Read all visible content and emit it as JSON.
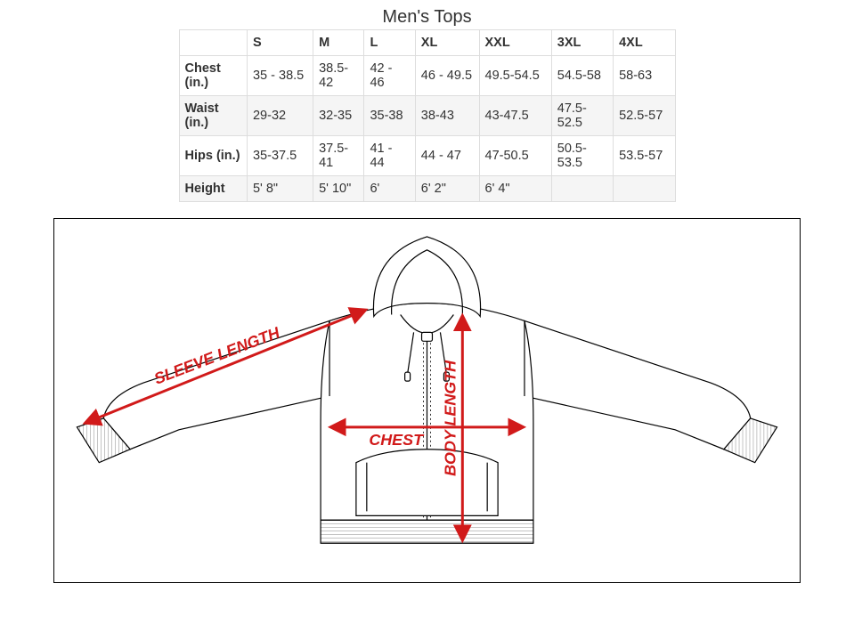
{
  "title": "Men's Tops",
  "table": {
    "columns": [
      "",
      "S",
      "M",
      "L",
      "XL",
      "XXL",
      "3XL",
      "4XL"
    ],
    "rows": [
      [
        "Chest (in.)",
        "35 - 38.5",
        "38.5-42",
        "42 - 46",
        "46 - 49.5",
        "49.5-54.5",
        "54.5-58",
        "58-63"
      ],
      [
        "Waist (in.)",
        "29-32",
        "32-35",
        "35-38",
        "38-43",
        "43-47.5",
        "47.5-52.5",
        "52.5-57"
      ],
      [
        "Hips (in.)",
        "35-37.5",
        "37.5-41",
        "41 - 44",
        "44 - 47",
        "47-50.5",
        "50.5-53.5",
        "53.5-57"
      ],
      [
        "Height",
        "5' 8\"",
        "5' 10\"",
        "6'",
        "6' 2\"",
        "6' 4\"",
        "",
        ""
      ]
    ],
    "border_color": "#dddddd",
    "row_alt_bg": "#f5f5f5",
    "text_color": "#333333",
    "fontsize": 14.5
  },
  "diagram": {
    "border_color": "#000000",
    "garment_stroke": "#000000",
    "garment_stroke_width": 1.2,
    "arrow_color": "#d11a1a",
    "arrow_width": 3,
    "label_color": "#d11a1a",
    "label_fontsize": 18,
    "labels": {
      "sleeve": "SLEEVE LENGTH",
      "chest": "CHEST",
      "body": "BODY LENGTH"
    }
  }
}
